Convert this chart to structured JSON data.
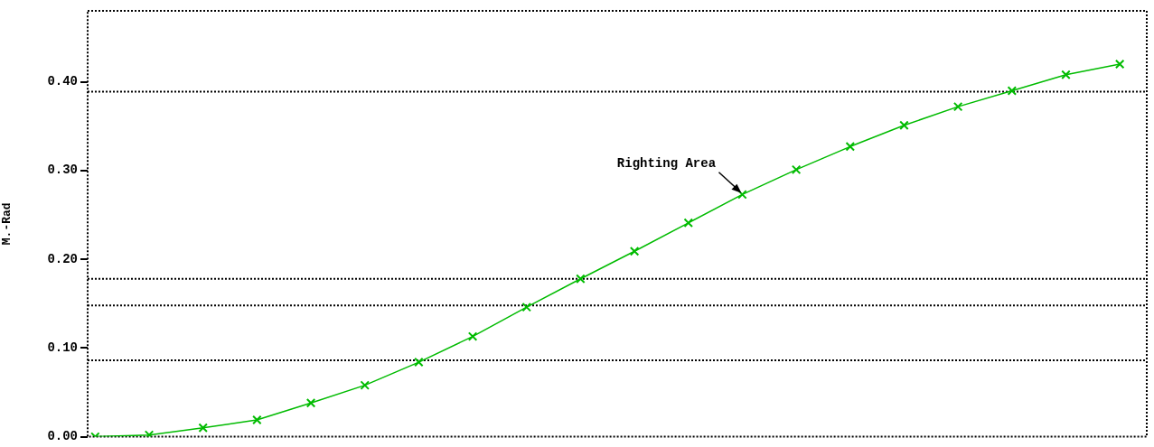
{
  "chart_data": {
    "type": "line",
    "ylabel": "M.-Rad",
    "categories": [
      null,
      null,
      null,
      null,
      null,
      null,
      null,
      null,
      null,
      null,
      null,
      null,
      null,
      null,
      null,
      null,
      null,
      null,
      null,
      null
    ],
    "series": [
      {
        "color": "#00bb00",
        "values": [
          0.0,
          0.002,
          0.01,
          0.019,
          0.038,
          0.058,
          0.084,
          0.113,
          0.146,
          0.178,
          0.209,
          0.241,
          0.273,
          0.301,
          0.327,
          0.351,
          0.372,
          0.39,
          0.408,
          0.42
        ]
      }
    ],
    "ylim": [
      0,
      0.48
    ],
    "yticks": [
      {
        "value": 0,
        "label": "0.00"
      },
      {
        "value": 0.1,
        "label": "0.10"
      },
      {
        "value": 0.2,
        "label": "0.20"
      },
      {
        "value": 0.3,
        "label": "0.30"
      },
      {
        "value": 0.4,
        "label": "0.40"
      }
    ],
    "tick_labels": "y",
    "grid": false,
    "legend": false,
    "marker": "cross",
    "line_style": "solid",
    "ref_lines": [
      {
        "axis": "y",
        "value": 0.389,
        "color": "#000000",
        "line_style": "dotted"
      },
      {
        "axis": "y",
        "value": 0.178,
        "color": "#000000",
        "line_style": "dotted"
      },
      {
        "axis": "y",
        "value": 0.148,
        "color": "#000000",
        "line_style": "dotted"
      },
      {
        "axis": "y",
        "value": 0.086,
        "color": "#000000",
        "line_style": "dotted"
      }
    ],
    "annotations": [
      "Righting Area"
    ]
  }
}
